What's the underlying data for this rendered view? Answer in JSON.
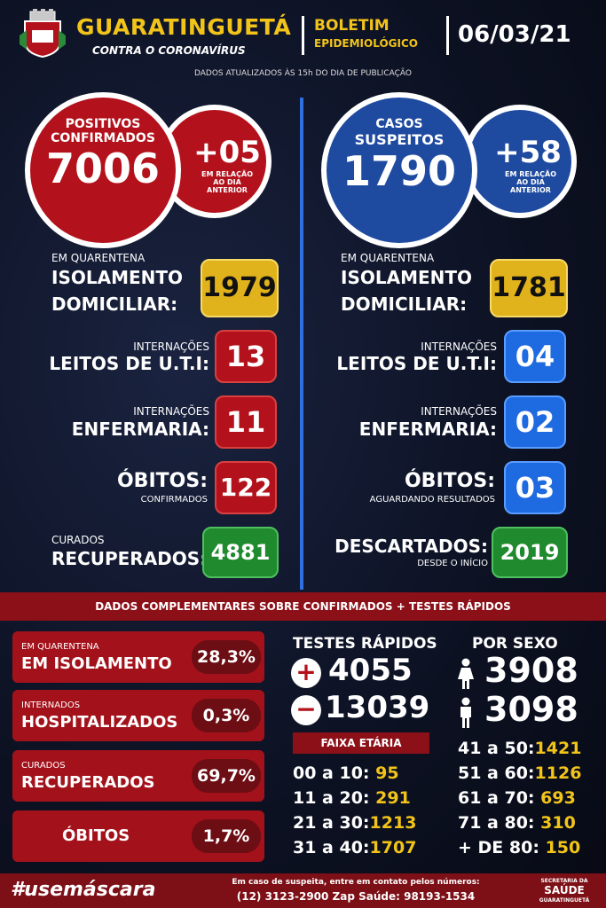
{
  "header": {
    "city": "GUARATINGUETÁ",
    "subtitle": "CONTRA O CORONAVÍRUS",
    "bulletin_line1": "BOLETIM",
    "bulletin_line2": "EPIDEMIOLÓGICO",
    "date": "06/03/21",
    "updated_note": "DADOS ATUALIZADOS ÀS 15h DO DIA DE PUBLICAÇÃO"
  },
  "confirmed": {
    "title_line1": "POSITIVOS",
    "title_line2": "CONFIRMADOS",
    "value": "7006",
    "delta": "+05",
    "delta_note_1": "EM RELAÇÃO",
    "delta_note_2": "AO DIA",
    "delta_note_3": "ANTERIOR",
    "quarantine_small": "EM QUARENTENA",
    "quarantine_l1": "ISOLAMENTO",
    "quarantine_l2": "DOMICILIAR:",
    "quarantine_value": "1979",
    "uti_small": "INTERNAÇÕES",
    "uti_label": "LEITOS DE U.T.I:",
    "uti_value": "13",
    "enf_small": "INTERNAÇÕES",
    "enf_label": "ENFERMARIA:",
    "enf_value": "11",
    "obitos_label": "ÓBITOS:",
    "obitos_small": "CONFIRMADOS",
    "obitos_value": "122",
    "curados_small": "CURADOS",
    "curados_label": "RECUPERADOS:",
    "curados_value": "4881"
  },
  "suspected": {
    "title_line1": "CASOS",
    "title_line2": "SUSPEITOS",
    "value": "1790",
    "delta": "+58",
    "delta_note_1": "EM RELAÇÃO",
    "delta_note_2": "AO DIA",
    "delta_note_3": "ANTERIOR",
    "quarantine_small": "EM QUARENTENA",
    "quarantine_l1": "ISOLAMENTO",
    "quarantine_l2": "DOMICILIAR:",
    "quarantine_value": "1781",
    "uti_small": "INTERNAÇÕES",
    "uti_label": "LEITOS DE U.T.I:",
    "uti_value": "04",
    "enf_small": "INTERNAÇÕES",
    "enf_label": "ENFERMARIA:",
    "enf_value": "02",
    "obitos_label": "ÓBITOS:",
    "obitos_small": "AGUARDANDO RESULTADOS",
    "obitos_value": "03",
    "desc_label": "DESCARTADOS:",
    "desc_small": "DESDE O INÍCIO",
    "desc_value": "2019"
  },
  "complementary": {
    "band": "DADOS COMPLEMENTARES SOBRE CONFIRMADOS + TESTES RÁPIDOS",
    "isol_small": "EM QUARENTENA",
    "isol_label": "EM ISOLAMENTO",
    "isol_pct": "28,3%",
    "hosp_small": "INTERNADOS",
    "hosp_label": "HOSPITALIZADOS",
    "hosp_pct": "0,3%",
    "cur_small": "CURADOS",
    "cur_label": "RECUPERADOS",
    "cur_pct": "69,7%",
    "obi_label": "ÓBITOS",
    "obi_pct": "1,7%"
  },
  "rapid_tests": {
    "title": "TESTES RÁPIDOS",
    "positive_symbol": "+",
    "positive": "4055",
    "negative_symbol": "−",
    "negative": "13039"
  },
  "sex": {
    "title": "POR SEXO",
    "female": "3908",
    "male": "3098"
  },
  "age": {
    "title": "FAIXA ETÁRIA",
    "left": [
      {
        "range": "00 a 10:",
        "value": "95"
      },
      {
        "range": "11 a 20:",
        "value": "291"
      },
      {
        "range": "21 a 30:",
        "value": "1213"
      },
      {
        "range": "31 a 40:",
        "value": "1707"
      }
    ],
    "right": [
      {
        "range": "41 a 50:",
        "value": "1421"
      },
      {
        "range": "51 a 60:",
        "value": "1126"
      },
      {
        "range": "61 a 70:",
        "value": "693"
      },
      {
        "range": "71 a 80:",
        "value": "310"
      },
      {
        "range": "+ DE 80:",
        "value": "150"
      }
    ]
  },
  "footer": {
    "hashtag": "#usemáscara",
    "contact_1": "Em caso de suspeita, entre em contato pelos números:",
    "contact_2": "(12) 3123-2900 Zap Saúde: 98193-1534",
    "dept_1": "SECRETARIA DA",
    "dept_2": "SAÚDE",
    "dept_3": "GUARATINGUETÁ"
  },
  "colors": {
    "accent_gold": "#f2c41a",
    "red": "#b3121c",
    "blue": "#1e4aa0",
    "green": "#1f8a2e"
  }
}
